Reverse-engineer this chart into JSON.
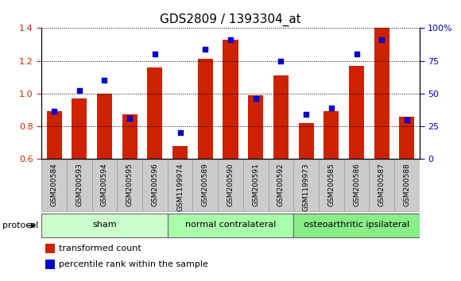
{
  "title": "GDS2809 / 1393304_at",
  "samples": [
    "GSM200584",
    "GSM200593",
    "GSM200594",
    "GSM200595",
    "GSM200596",
    "GSM1199974",
    "GSM200589",
    "GSM200590",
    "GSM200591",
    "GSM200592",
    "GSM1199973",
    "GSM200585",
    "GSM200586",
    "GSM200587",
    "GSM200588"
  ],
  "red_values": [
    0.89,
    0.97,
    1.0,
    0.87,
    1.16,
    0.68,
    1.21,
    1.33,
    0.99,
    1.11,
    0.82,
    0.89,
    1.17,
    1.4,
    0.86
  ],
  "blue_values": [
    0.89,
    1.02,
    1.08,
    0.85,
    1.24,
    0.76,
    1.27,
    1.33,
    0.97,
    1.2,
    0.87,
    0.91,
    1.24,
    1.33,
    0.84
  ],
  "ylim_left": [
    0.6,
    1.4
  ],
  "ylim_right": [
    0,
    100
  ],
  "red_color": "#cc2200",
  "blue_color": "#0000cc",
  "bar_width": 0.6,
  "groups": [
    {
      "label": "sham",
      "start": 0,
      "end": 4
    },
    {
      "label": "normal contralateral",
      "start": 5,
      "end": 9
    },
    {
      "label": "osteoarthritic ipsilateral",
      "start": 10,
      "end": 14
    }
  ],
  "group_colors": [
    "#ccffcc",
    "#aaffaa",
    "#88ee88"
  ],
  "protocol_label": "protocol",
  "legend_red": "transformed count",
  "legend_blue": "percentile rank within the sample",
  "background_color": "#ffffff",
  "plot_bg_color": "#ffffff",
  "tick_label_color_left": "#cc2200",
  "tick_label_color_right": "#0000cc",
  "title_fontsize": 11,
  "sample_box_color": "#cccccc",
  "sample_box_edge": "#999999"
}
